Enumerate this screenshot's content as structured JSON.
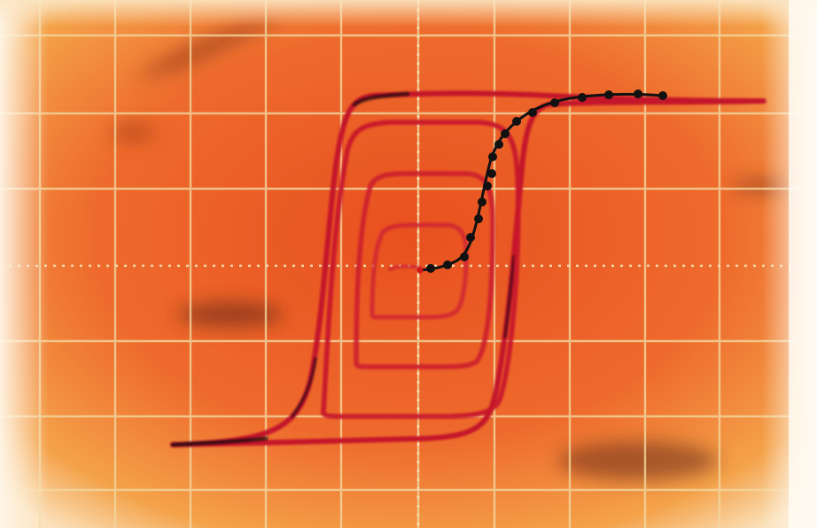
{
  "image": {
    "subject": "oscilloscope-hysteresis-loops",
    "colors": {
      "screen_center": "#e8501f",
      "screen_edge": "#f4a24a",
      "grid_line": "#f2d8a0",
      "trace_red": "#c4122a",
      "trace_dark": "#1a1010",
      "curve_black": "#111111",
      "glare": "#fff6e8"
    },
    "icons": {
      "marker": "dot-marker-icon"
    },
    "grid": {
      "vertical_divisions": 10,
      "horizontal_divisions": 7
    },
    "traces": {
      "loop_count": 4,
      "magnetization_curve_points": 21
    }
  }
}
